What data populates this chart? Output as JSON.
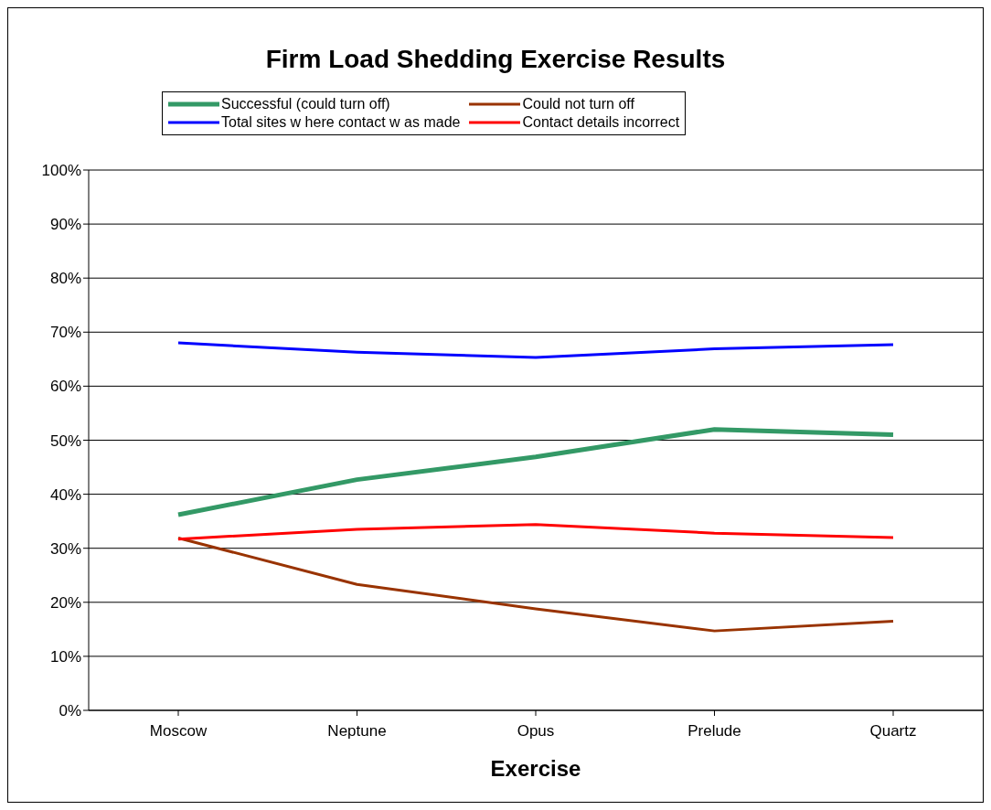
{
  "chart_data": {
    "type": "line",
    "title": "Firm Load Shedding Exercise Results",
    "xlabel": "Exercise",
    "categories": [
      "Moscow",
      "Neptune",
      "Opus",
      "Prelude",
      "Quartz"
    ],
    "series": [
      {
        "name": "Successful (could turn off)",
        "color": "#339966",
        "values": [
          36.2,
          42.7,
          46.9,
          52,
          51
        ]
      },
      {
        "name": "Could not turn off",
        "color": "#993300",
        "values": [
          31.9,
          23.3,
          18.8,
          14.7,
          16.5
        ]
      },
      {
        "name": "Total sites w here contact w as made",
        "color": "#0000ff",
        "values": [
          68,
          66.3,
          65.3,
          66.9,
          67.7
        ]
      },
      {
        "name": "Contact details incorrect",
        "color": "#ff0000",
        "values": [
          31.7,
          33.5,
          34.4,
          32.8,
          32
        ]
      }
    ],
    "ylim": [
      0,
      100
    ],
    "yticks": [
      {
        "value": 0,
        "label": "0%"
      },
      {
        "value": 10,
        "label": "10%"
      },
      {
        "value": 20,
        "label": "20%"
      },
      {
        "value": 30,
        "label": "30%"
      },
      {
        "value": 40,
        "label": "40%"
      },
      {
        "value": 50,
        "label": "50%"
      },
      {
        "value": 60,
        "label": "60%"
      },
      {
        "value": 70,
        "label": "70%"
      },
      {
        "value": 80,
        "label": "80%"
      },
      {
        "value": 90,
        "label": "90%"
      },
      {
        "value": 100,
        "label": "100%"
      }
    ],
    "grid": "y",
    "legend": "top",
    "marker": "none",
    "line_style": "solid"
  }
}
